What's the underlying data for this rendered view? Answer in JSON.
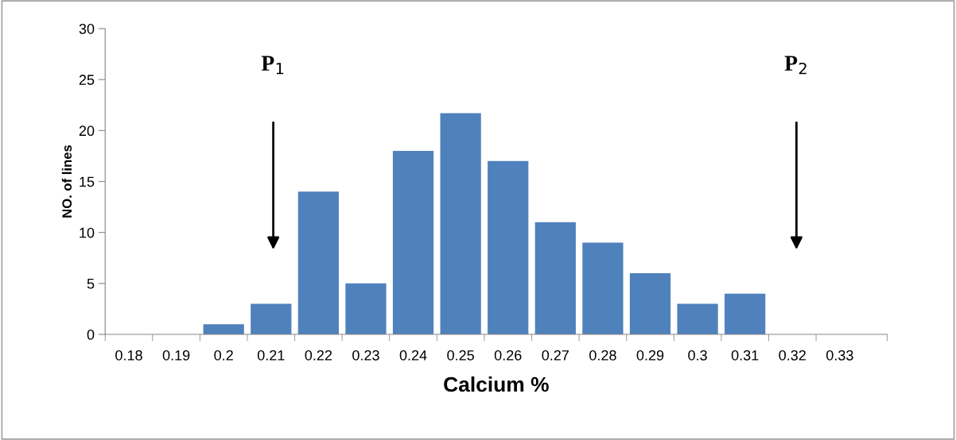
{
  "chart_data": {
    "type": "bar",
    "xlabel": "Calcium %",
    "ylabel": "NO. of lines",
    "categories": [
      "0.18",
      "0.19",
      "0.2",
      "0.21",
      "0.22",
      "0.23",
      "0.24",
      "0.25",
      "0.26",
      "0.27",
      "0.28",
      "0.29",
      "0.3",
      "0.31",
      "0.32",
      "0.33"
    ],
    "values": [
      0,
      0,
      1,
      3,
      14,
      5,
      18,
      21.7,
      17,
      11,
      9,
      6,
      3,
      4,
      0,
      0
    ],
    "color": "#4f81bd",
    "ylim": [
      0,
      30
    ],
    "yticks": [
      0,
      5,
      10,
      15,
      20,
      25,
      30
    ],
    "grid": false,
    "annotations": [
      "P$_{1}$",
      "P$_{2}$"
    ]
  }
}
